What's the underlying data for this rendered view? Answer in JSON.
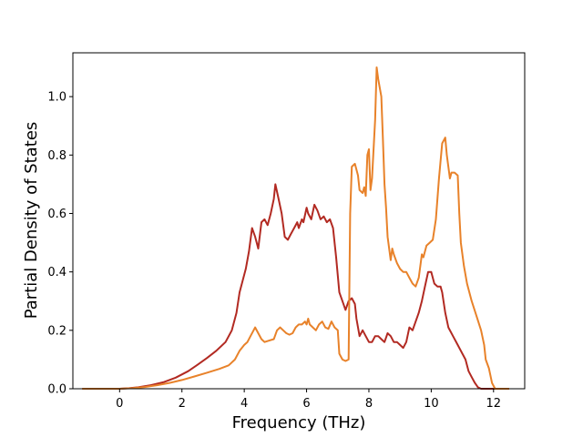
{
  "chart_data": {
    "type": "line",
    "title": "",
    "xlabel": "Frequency (THz)",
    "ylabel": "Partial Density of States",
    "xlim": [
      -1.2,
      13.0
    ],
    "ylim": [
      0.0,
      1.15
    ],
    "xticks": [
      0,
      2,
      4,
      6,
      8,
      10,
      12
    ],
    "yticks": [
      0.0,
      0.2,
      0.4,
      0.6,
      0.8,
      1.0
    ],
    "xtick_labels": [
      "0",
      "2",
      "4",
      "6",
      "8",
      "10",
      "12"
    ],
    "ytick_labels": [
      "0.0",
      "0.2",
      "0.4",
      "0.6",
      "0.8",
      "1.0"
    ],
    "grid": false,
    "legend": "none",
    "series": [
      {
        "color": "#b22a22",
        "points": [
          [
            -1.2,
            0
          ],
          [
            -0.5,
            0
          ],
          [
            0,
            0
          ],
          [
            0.3,
            0.002
          ],
          [
            0.6,
            0.005
          ],
          [
            1.0,
            0.012
          ],
          [
            1.4,
            0.022
          ],
          [
            1.8,
            0.038
          ],
          [
            2.2,
            0.06
          ],
          [
            2.5,
            0.082
          ],
          [
            2.8,
            0.105
          ],
          [
            3.1,
            0.13
          ],
          [
            3.4,
            0.16
          ],
          [
            3.6,
            0.2
          ],
          [
            3.75,
            0.26
          ],
          [
            3.85,
            0.33
          ],
          [
            3.95,
            0.37
          ],
          [
            4.05,
            0.41
          ],
          [
            4.15,
            0.47
          ],
          [
            4.25,
            0.55
          ],
          [
            4.35,
            0.52
          ],
          [
            4.45,
            0.48
          ],
          [
            4.55,
            0.57
          ],
          [
            4.65,
            0.58
          ],
          [
            4.75,
            0.56
          ],
          [
            4.85,
            0.6
          ],
          [
            4.95,
            0.65
          ],
          [
            5.0,
            0.7
          ],
          [
            5.1,
            0.65
          ],
          [
            5.2,
            0.6
          ],
          [
            5.3,
            0.52
          ],
          [
            5.4,
            0.51
          ],
          [
            5.5,
            0.53
          ],
          [
            5.6,
            0.55
          ],
          [
            5.7,
            0.57
          ],
          [
            5.75,
            0.55
          ],
          [
            5.85,
            0.58
          ],
          [
            5.9,
            0.57
          ],
          [
            6.0,
            0.62
          ],
          [
            6.05,
            0.6
          ],
          [
            6.15,
            0.58
          ],
          [
            6.25,
            0.63
          ],
          [
            6.35,
            0.61
          ],
          [
            6.45,
            0.58
          ],
          [
            6.55,
            0.59
          ],
          [
            6.65,
            0.57
          ],
          [
            6.75,
            0.58
          ],
          [
            6.85,
            0.55
          ],
          [
            6.95,
            0.45
          ],
          [
            7.05,
            0.33
          ],
          [
            7.15,
            0.3
          ],
          [
            7.25,
            0.27
          ],
          [
            7.35,
            0.3
          ],
          [
            7.45,
            0.31
          ],
          [
            7.55,
            0.29
          ],
          [
            7.6,
            0.24
          ],
          [
            7.7,
            0.18
          ],
          [
            7.8,
            0.2
          ],
          [
            7.9,
            0.18
          ],
          [
            8.0,
            0.16
          ],
          [
            8.1,
            0.16
          ],
          [
            8.2,
            0.18
          ],
          [
            8.3,
            0.18
          ],
          [
            8.4,
            0.17
          ],
          [
            8.5,
            0.16
          ],
          [
            8.6,
            0.19
          ],
          [
            8.7,
            0.18
          ],
          [
            8.8,
            0.16
          ],
          [
            8.9,
            0.16
          ],
          [
            9.0,
            0.15
          ],
          [
            9.1,
            0.14
          ],
          [
            9.2,
            0.16
          ],
          [
            9.3,
            0.21
          ],
          [
            9.4,
            0.2
          ],
          [
            9.5,
            0.23
          ],
          [
            9.6,
            0.26
          ],
          [
            9.7,
            0.3
          ],
          [
            9.8,
            0.35
          ],
          [
            9.9,
            0.4
          ],
          [
            10.0,
            0.4
          ],
          [
            10.1,
            0.36
          ],
          [
            10.2,
            0.35
          ],
          [
            10.3,
            0.35
          ],
          [
            10.35,
            0.33
          ],
          [
            10.45,
            0.26
          ],
          [
            10.55,
            0.21
          ],
          [
            10.7,
            0.18
          ],
          [
            10.85,
            0.15
          ],
          [
            11.0,
            0.12
          ],
          [
            11.1,
            0.1
          ],
          [
            11.2,
            0.06
          ],
          [
            11.3,
            0.04
          ],
          [
            11.4,
            0.02
          ],
          [
            11.5,
            0.005
          ],
          [
            11.6,
            0
          ],
          [
            12.0,
            0
          ],
          [
            12.5,
            0
          ]
        ]
      },
      {
        "color": "#e8822a",
        "points": [
          [
            -1.2,
            0
          ],
          [
            -0.5,
            0
          ],
          [
            0,
            0
          ],
          [
            0.4,
            0.002
          ],
          [
            0.8,
            0.006
          ],
          [
            1.2,
            0.012
          ],
          [
            1.6,
            0.02
          ],
          [
            2.0,
            0.03
          ],
          [
            2.4,
            0.042
          ],
          [
            2.8,
            0.055
          ],
          [
            3.2,
            0.068
          ],
          [
            3.5,
            0.08
          ],
          [
            3.7,
            0.1
          ],
          [
            3.85,
            0.13
          ],
          [
            4.0,
            0.15
          ],
          [
            4.1,
            0.16
          ],
          [
            4.2,
            0.18
          ],
          [
            4.3,
            0.2
          ],
          [
            4.35,
            0.21
          ],
          [
            4.45,
            0.19
          ],
          [
            4.55,
            0.17
          ],
          [
            4.65,
            0.16
          ],
          [
            4.8,
            0.165
          ],
          [
            4.95,
            0.17
          ],
          [
            5.05,
            0.2
          ],
          [
            5.15,
            0.21
          ],
          [
            5.25,
            0.2
          ],
          [
            5.35,
            0.19
          ],
          [
            5.45,
            0.185
          ],
          [
            5.55,
            0.19
          ],
          [
            5.65,
            0.21
          ],
          [
            5.75,
            0.22
          ],
          [
            5.85,
            0.22
          ],
          [
            5.95,
            0.23
          ],
          [
            6.0,
            0.22
          ],
          [
            6.05,
            0.24
          ],
          [
            6.1,
            0.22
          ],
          [
            6.2,
            0.21
          ],
          [
            6.3,
            0.2
          ],
          [
            6.4,
            0.22
          ],
          [
            6.5,
            0.23
          ],
          [
            6.6,
            0.21
          ],
          [
            6.7,
            0.205
          ],
          [
            6.8,
            0.23
          ],
          [
            6.9,
            0.21
          ],
          [
            7.0,
            0.2
          ],
          [
            7.05,
            0.12
          ],
          [
            7.15,
            0.1
          ],
          [
            7.25,
            0.095
          ],
          [
            7.35,
            0.1
          ],
          [
            7.4,
            0.6
          ],
          [
            7.45,
            0.76
          ],
          [
            7.55,
            0.77
          ],
          [
            7.65,
            0.73
          ],
          [
            7.7,
            0.68
          ],
          [
            7.8,
            0.67
          ],
          [
            7.85,
            0.69
          ],
          [
            7.9,
            0.66
          ],
          [
            7.95,
            0.8
          ],
          [
            8.0,
            0.82
          ],
          [
            8.05,
            0.68
          ],
          [
            8.1,
            0.72
          ],
          [
            8.2,
            0.92
          ],
          [
            8.25,
            1.1
          ],
          [
            8.3,
            1.06
          ],
          [
            8.4,
            1.0
          ],
          [
            8.45,
            0.85
          ],
          [
            8.5,
            0.7
          ],
          [
            8.55,
            0.62
          ],
          [
            8.6,
            0.52
          ],
          [
            8.7,
            0.44
          ],
          [
            8.75,
            0.48
          ],
          [
            8.8,
            0.46
          ],
          [
            8.9,
            0.43
          ],
          [
            9.0,
            0.41
          ],
          [
            9.1,
            0.4
          ],
          [
            9.2,
            0.4
          ],
          [
            9.3,
            0.38
          ],
          [
            9.4,
            0.36
          ],
          [
            9.5,
            0.35
          ],
          [
            9.6,
            0.38
          ],
          [
            9.7,
            0.46
          ],
          [
            9.75,
            0.45
          ],
          [
            9.85,
            0.49
          ],
          [
            9.95,
            0.5
          ],
          [
            10.05,
            0.51
          ],
          [
            10.15,
            0.58
          ],
          [
            10.25,
            0.72
          ],
          [
            10.35,
            0.84
          ],
          [
            10.45,
            0.86
          ],
          [
            10.5,
            0.8
          ],
          [
            10.55,
            0.76
          ],
          [
            10.6,
            0.72
          ],
          [
            10.65,
            0.74
          ],
          [
            10.75,
            0.74
          ],
          [
            10.85,
            0.73
          ],
          [
            10.9,
            0.6
          ],
          [
            10.95,
            0.5
          ],
          [
            11.05,
            0.42
          ],
          [
            11.15,
            0.36
          ],
          [
            11.3,
            0.3
          ],
          [
            11.45,
            0.25
          ],
          [
            11.6,
            0.2
          ],
          [
            11.7,
            0.15
          ],
          [
            11.75,
            0.1
          ],
          [
            11.85,
            0.07
          ],
          [
            11.95,
            0.02
          ],
          [
            12.05,
            0
          ],
          [
            12.5,
            0
          ]
        ]
      }
    ]
  }
}
